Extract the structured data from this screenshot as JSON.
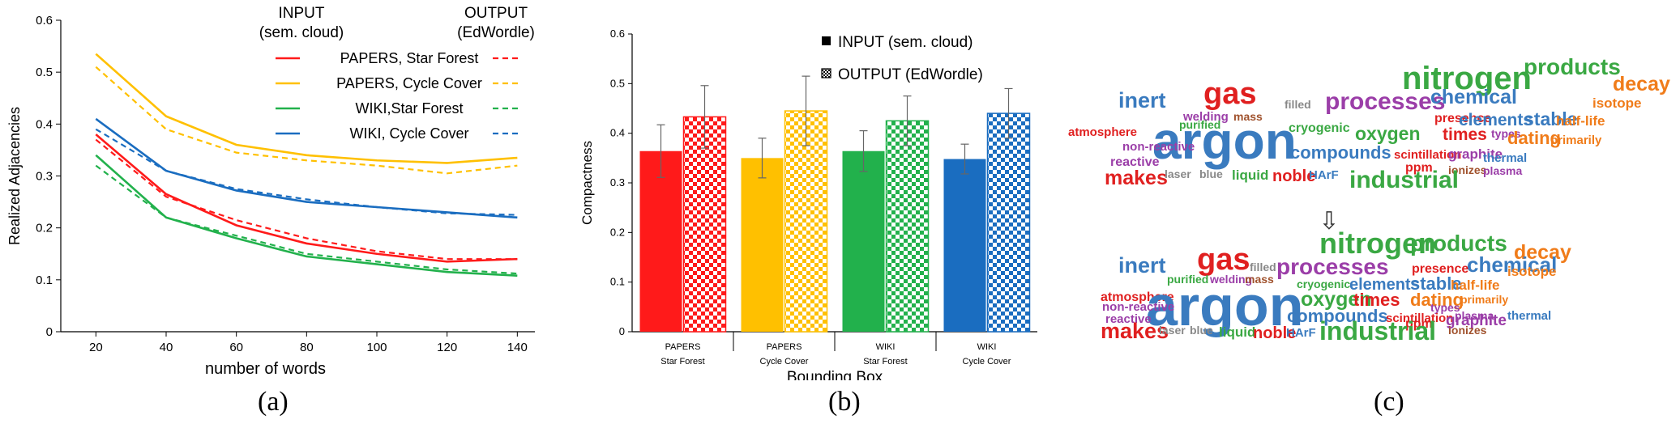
{
  "panels": {
    "a": "(a)",
    "b": "(b)",
    "c": "(c)"
  },
  "colors": {
    "papers_sf": "#ff1a1a",
    "papers_cc": "#ffc000",
    "wiki_sf": "#22b14c",
    "wiki_cc": "#1a6dc0"
  },
  "chart_data": [
    {
      "type": "line",
      "xlabel": "number of words",
      "ylabel": "Realized Adjacencies",
      "ylim": [
        0,
        0.6
      ],
      "xlim": [
        10,
        145
      ],
      "x": [
        20,
        40,
        60,
        80,
        100,
        120,
        140
      ],
      "x_ticks": [
        "20",
        "40",
        "60",
        "80",
        "100",
        "120",
        "140"
      ],
      "y_ticks": [
        "0",
        "0.1",
        "0.2",
        "0.3",
        "0.4",
        "0.5",
        "0.6"
      ],
      "legend": {
        "col_input_1": "INPUT",
        "col_input_2": "(sem. cloud)",
        "col_output_1": "OUTPUT",
        "col_output_2": "(EdWordle)",
        "placement": "top-right"
      },
      "series": [
        {
          "name": "PAPERS, Star Forest",
          "color": "#ff1a1a",
          "input": [
            0.38,
            0.265,
            0.205,
            0.17,
            0.15,
            0.135,
            0.14
          ],
          "output": [
            0.37,
            0.26,
            0.215,
            0.18,
            0.155,
            0.14,
            0.14
          ]
        },
        {
          "name": "PAPERS, Cycle Cover",
          "color": "#ffc000",
          "input": [
            0.535,
            0.415,
            0.36,
            0.34,
            0.33,
            0.325,
            0.335
          ],
          "output": [
            0.51,
            0.39,
            0.345,
            0.33,
            0.32,
            0.305,
            0.32
          ]
        },
        {
          "name": "WIKI,Star Forest",
          "color": "#22b14c",
          "input": [
            0.34,
            0.22,
            0.18,
            0.145,
            0.13,
            0.115,
            0.108
          ],
          "output": [
            0.32,
            0.22,
            0.185,
            0.15,
            0.135,
            0.12,
            0.112
          ]
        },
        {
          "name": "WIKI, Cycle Cover",
          "color": "#1a6dc0",
          "input": [
            0.41,
            0.31,
            0.272,
            0.25,
            0.24,
            0.23,
            0.22
          ],
          "output": [
            0.39,
            0.31,
            0.275,
            0.255,
            0.24,
            0.228,
            0.225
          ]
        }
      ]
    },
    {
      "type": "bar",
      "xlabel": "Bounding Box",
      "ylabel": "Compactness",
      "ylim": [
        0,
        0.6
      ],
      "y_ticks": [
        "0",
        "0.1",
        "0.2",
        "0.3",
        "0.4",
        "0.5",
        "0.6"
      ],
      "categories": [
        {
          "line1": "PAPERS",
          "line2": "Star Forest"
        },
        {
          "line1": "PAPERS",
          "line2": "Cycle Cover"
        },
        {
          "line1": "WIKI",
          "line2": "Star Forest"
        },
        {
          "line1": "WIKI",
          "line2": "Cycle Cover"
        }
      ],
      "legend": {
        "input": "INPUT  (sem. cloud)",
        "output": "OUTPUT (EdWordle)",
        "placement": "top-right"
      },
      "series": [
        {
          "name": "INPUT  (sem. cloud)",
          "pattern": "solid",
          "values": [
            0.364,
            0.35,
            0.364,
            0.348
          ],
          "err": [
            0.053,
            0.04,
            0.041,
            0.03
          ]
        },
        {
          "name": "OUTPUT (EdWordle)",
          "pattern": "checker",
          "values": [
            0.433,
            0.445,
            0.425,
            0.44
          ],
          "err": [
            0.063,
            0.07,
            0.05,
            0.05
          ]
        }
      ],
      "colors": [
        "#ff1a1a",
        "#ffc000",
        "#22b14c",
        "#1a6dc0"
      ]
    }
  ],
  "wordcloud": {
    "arrow": "⇩",
    "top": [
      {
        "t": "nitrogen",
        "c": "#3aa843"
      },
      {
        "t": "products",
        "c": "#3aa843"
      },
      {
        "t": "decay",
        "c": "#f07c1a"
      },
      {
        "t": "inert",
        "c": "#3a7bbf"
      },
      {
        "t": "gas",
        "c": "#e02020"
      },
      {
        "t": "filled",
        "c": "#888888"
      },
      {
        "t": "processes",
        "c": "#9b3ea8"
      },
      {
        "t": "chemical",
        "c": "#3a7bbf"
      },
      {
        "t": "isotope",
        "c": "#f07c1a"
      },
      {
        "t": "welding",
        "c": "#9b3ea8"
      },
      {
        "t": "mass",
        "c": "#a0522d"
      },
      {
        "t": "presence",
        "c": "#e02020"
      },
      {
        "t": "elements",
        "c": "#3a7bbf"
      },
      {
        "t": "stable",
        "c": "#3a7bbf"
      },
      {
        "t": "half-life",
        "c": "#f07c1a"
      },
      {
        "t": "atmosphere",
        "c": "#e02020"
      },
      {
        "t": "argon",
        "c": "#3a7bbf"
      },
      {
        "t": "cryogenic",
        "c": "#3aa843"
      },
      {
        "t": "oxygen",
        "c": "#3aa843"
      },
      {
        "t": "times",
        "c": "#e02020"
      },
      {
        "t": "types",
        "c": "#9b3ea8"
      },
      {
        "t": "dating",
        "c": "#f07c1a"
      },
      {
        "t": "primarily",
        "c": "#f07c1a"
      },
      {
        "t": "non-reactive",
        "c": "#9b3ea8"
      },
      {
        "t": "purified",
        "c": "#3aa843"
      },
      {
        "t": "compounds",
        "c": "#3a7bbf"
      },
      {
        "t": "scintillation",
        "c": "#e02020"
      },
      {
        "t": "graphite",
        "c": "#9b3ea8"
      },
      {
        "t": "thermal",
        "c": "#3a7bbf"
      },
      {
        "t": "reactive",
        "c": "#9b3ea8"
      },
      {
        "t": "ppm",
        "c": "#e02020"
      },
      {
        "t": "ionizes",
        "c": "#a0522d"
      },
      {
        "t": "plasma",
        "c": "#9b3ea8"
      },
      {
        "t": "makes",
        "c": "#e02020"
      },
      {
        "t": "laser",
        "c": "#888888"
      },
      {
        "t": "blue",
        "c": "#888888"
      },
      {
        "t": "liquid",
        "c": "#3aa843"
      },
      {
        "t": "noble",
        "c": "#e02020"
      },
      {
        "t": "HArF",
        "c": "#3a7bbf"
      },
      {
        "t": "industrial",
        "c": "#3aa843"
      }
    ],
    "bottom": [
      {
        "t": "nitrogen",
        "c": "#3aa843"
      },
      {
        "t": "products",
        "c": "#3aa843"
      },
      {
        "t": "decay",
        "c": "#f07c1a"
      },
      {
        "t": "inert",
        "c": "#3a7bbf"
      },
      {
        "t": "gas",
        "c": "#e02020"
      },
      {
        "t": "filled",
        "c": "#888888"
      },
      {
        "t": "processes",
        "c": "#9b3ea8"
      },
      {
        "t": "presence",
        "c": "#e02020"
      },
      {
        "t": "chemical",
        "c": "#3a7bbf"
      },
      {
        "t": "isotope",
        "c": "#f07c1a"
      },
      {
        "t": "purified",
        "c": "#3aa843"
      },
      {
        "t": "welding",
        "c": "#9b3ea8"
      },
      {
        "t": "mass",
        "c": "#a0522d"
      },
      {
        "t": "atmosphere",
        "c": "#e02020"
      },
      {
        "t": "argon",
        "c": "#3a7bbf"
      },
      {
        "t": "cryogenic",
        "c": "#3aa843"
      },
      {
        "t": "elements",
        "c": "#3a7bbf"
      },
      {
        "t": "stable",
        "c": "#3a7bbf"
      },
      {
        "t": "half-life",
        "c": "#f07c1a"
      },
      {
        "t": "oxygen",
        "c": "#3aa843"
      },
      {
        "t": "times",
        "c": "#e02020"
      },
      {
        "t": "dating",
        "c": "#f07c1a"
      },
      {
        "t": "primarily",
        "c": "#f07c1a"
      },
      {
        "t": "non-reactive",
        "c": "#9b3ea8"
      },
      {
        "t": "types",
        "c": "#9b3ea8"
      },
      {
        "t": "compounds",
        "c": "#3a7bbf"
      },
      {
        "t": "scintillation",
        "c": "#e02020"
      },
      {
        "t": "plasma",
        "c": "#9b3ea8"
      },
      {
        "t": "thermal",
        "c": "#3a7bbf"
      },
      {
        "t": "reactive",
        "c": "#9b3ea8"
      },
      {
        "t": "graphite",
        "c": "#9b3ea8"
      },
      {
        "t": "ppm",
        "c": "#e02020"
      },
      {
        "t": "ionizes",
        "c": "#a0522d"
      },
      {
        "t": "makes",
        "c": "#e02020"
      },
      {
        "t": "laser",
        "c": "#888888"
      },
      {
        "t": "blue",
        "c": "#888888"
      },
      {
        "t": "liquid",
        "c": "#3aa843"
      },
      {
        "t": "noble",
        "c": "#e02020"
      },
      {
        "t": "HArF",
        "c": "#3a7bbf"
      },
      {
        "t": "industrial",
        "c": "#3aa843"
      }
    ]
  }
}
